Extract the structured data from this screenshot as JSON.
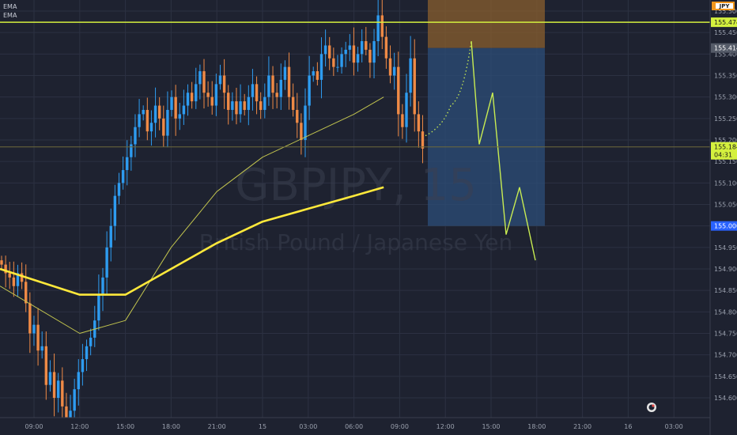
{
  "indicators": [
    "EMA",
    "EMA"
  ],
  "watermark": {
    "symbol": "GBPJPY, 15",
    "description": "British Pound / Japanese Yen"
  },
  "currency_badge": "JPY",
  "colors": {
    "background": "#1e2230",
    "grid": "#2c3142",
    "bull": "#2e9cf0",
    "bear": "#ef8a46",
    "ema_slow": "#ffe93b",
    "ema_fast": "#c2c44e",
    "projection": "#c8ec52",
    "stop_zone": "#8a5f2e",
    "target_zone": "#2c4d78",
    "resistance": "#d4f03e",
    "label_blue": "#2962ff"
  },
  "chart_data": {
    "type": "candlestick",
    "symbol": "GBPJPY",
    "interval": "15",
    "ylim": [
      154.555,
      155.6
    ],
    "y_ticks": [
      "155.500",
      "155.450",
      "155.400",
      "155.350",
      "155.300",
      "155.250",
      "155.200",
      "155.150",
      "155.100",
      "155.050",
      "155.000",
      "154.950",
      "154.900",
      "154.850",
      "154.800",
      "154.750",
      "154.700",
      "154.650",
      "154.600"
    ],
    "x_ticks": [
      "09:00",
      "12:00",
      "15:00",
      "18:00",
      "21:00",
      "15",
      "03:00",
      "06:00",
      "09:00",
      "12:00",
      "15:00",
      "18:00",
      "21:00",
      "16",
      "03:00"
    ],
    "price_labels": [
      {
        "value": 155.474,
        "text": "155.474",
        "kind": "resistance"
      },
      {
        "value": 155.414,
        "text": "155.414",
        "kind": "stop"
      },
      {
        "value": 155.184,
        "text": "155.184",
        "sub": "04:31",
        "kind": "current"
      },
      {
        "value": 155.0,
        "text": "155.000",
        "kind": "target"
      }
    ],
    "resistance_level": 155.474,
    "position": {
      "side": "short",
      "entry": 155.414,
      "stop": 155.57,
      "target": 155.0
    },
    "candle_closes": [
      154.91,
      154.89,
      154.88,
      154.86,
      154.89,
      154.87,
      154.82,
      154.75,
      154.77,
      154.71,
      154.72,
      154.63,
      154.66,
      154.6,
      154.64,
      154.58,
      154.55,
      154.57,
      154.62,
      154.66,
      154.69,
      154.72,
      154.74,
      154.78,
      154.84,
      154.88,
      154.95,
      155.0,
      155.07,
      155.1,
      155.13,
      155.16,
      155.19,
      155.23,
      155.26,
      155.27,
      155.22,
      155.24,
      155.28,
      155.25,
      155.21,
      155.27,
      155.3,
      155.25,
      155.26,
      155.28,
      155.31,
      155.29,
      155.33,
      155.36,
      155.31,
      155.3,
      155.28,
      155.33,
      155.35,
      155.31,
      155.27,
      155.29,
      155.26,
      155.29,
      155.27,
      155.3,
      155.33,
      155.29,
      155.27,
      155.3,
      155.35,
      155.31,
      155.3,
      155.34,
      155.37,
      155.3,
      155.27,
      155.24,
      155.2,
      155.28,
      155.35,
      155.36,
      155.34,
      155.4,
      155.42,
      155.39,
      155.37,
      155.37,
      155.4,
      155.41,
      155.42,
      155.38,
      155.4,
      155.43,
      155.41,
      155.38,
      155.43,
      155.49,
      155.44,
      155.39,
      155.35,
      155.37,
      155.26,
      155.23,
      155.31,
      155.39,
      155.26,
      155.22,
      155.18
    ],
    "ema_slow": {
      "x": [
        "09:00",
        "12:00",
        "15:00",
        "18:00",
        "21:00",
        "15",
        "03:00",
        "06:00",
        "09:00"
      ],
      "y": [
        154.9,
        154.84,
        154.84,
        154.9,
        154.96,
        155.01,
        155.04,
        155.07,
        155.09
      ]
    },
    "ema_fast": {
      "x": [
        "09:00",
        "12:00",
        "15:00",
        "18:00",
        "21:00",
        "15",
        "03:00",
        "06:00",
        "09:00"
      ],
      "y": [
        154.86,
        154.75,
        154.78,
        154.95,
        155.08,
        155.16,
        155.21,
        155.26,
        155.3
      ]
    },
    "projection": [
      155.21,
      155.28,
      155.43,
      155.19,
      155.31,
      154.98,
      155.09,
      154.92
    ]
  }
}
